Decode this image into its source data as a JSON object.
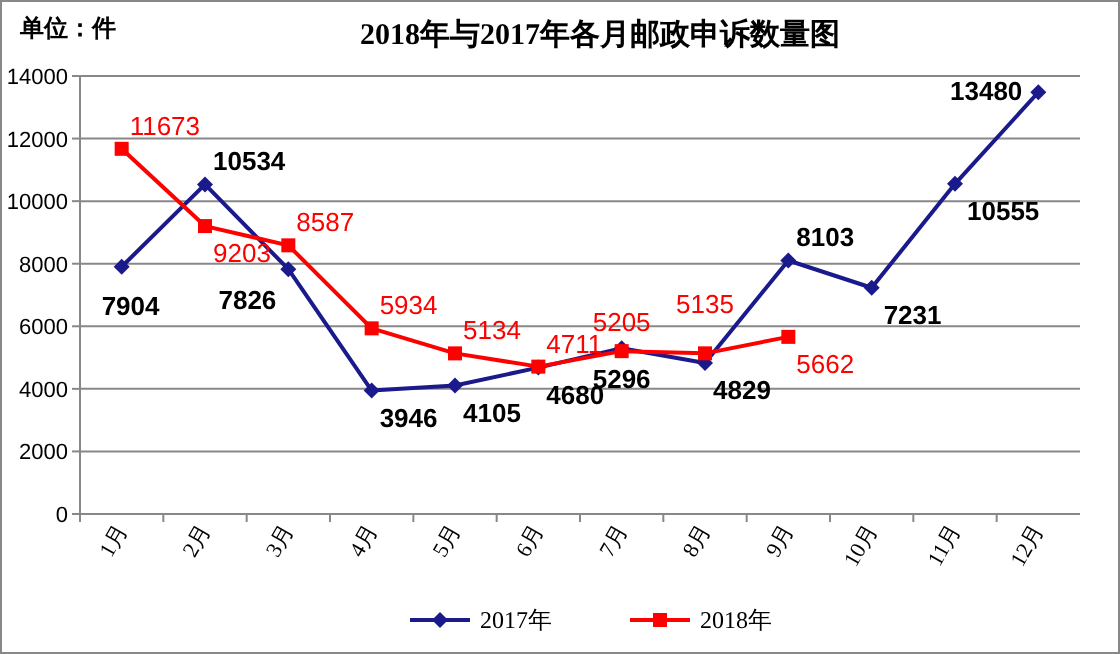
{
  "chart_data": {
    "type": "line",
    "title": "2018年与2017年各月邮政申诉数量图",
    "annotations": [
      "单位：件"
    ],
    "categories": [
      "1月",
      "2月",
      "3月",
      "4月",
      "5月",
      "6月",
      "7月",
      "8月",
      "9月",
      "10月",
      "11月",
      "12月"
    ],
    "series": [
      {
        "name": "2017年",
        "color": "#1a1a8c",
        "marker": "diamond",
        "values": [
          7904,
          10534,
          7826,
          3946,
          4105,
          4680,
          5296,
          4829,
          8103,
          7231,
          10555,
          13480
        ]
      },
      {
        "name": "2018年",
        "color": "#ff0000",
        "marker": "square",
        "values": [
          11673,
          9203,
          8587,
          5934,
          5134,
          4711,
          5205,
          5135,
          5662,
          null,
          null,
          null
        ]
      }
    ],
    "ylim": [
      0,
      14000
    ],
    "yticks": [
      0,
      2000,
      4000,
      6000,
      8000,
      10000,
      12000,
      14000
    ],
    "grid": "y",
    "legend": "bottom",
    "data_labels": true
  }
}
